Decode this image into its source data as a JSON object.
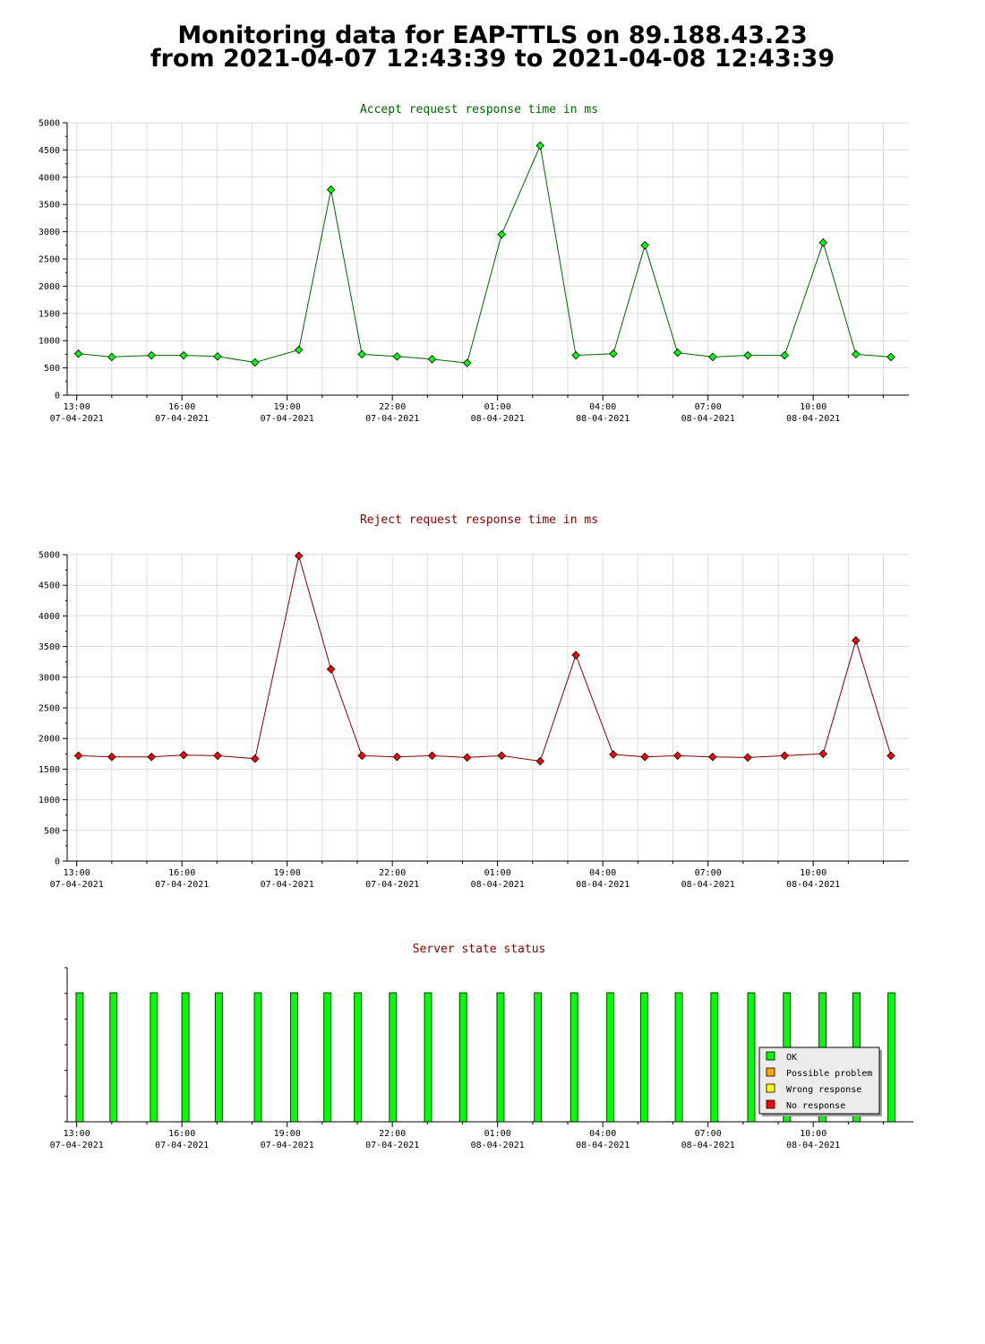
{
  "header": {
    "title_line1": "Monitoring data for EAP-TTLS on 89.188.43.23",
    "title_line2": "from 2021-04-07 12:43:39 to 2021-04-08 12:43:39"
  },
  "x_ticks": [
    {
      "time": "13:00",
      "date": "07-04-2021"
    },
    {
      "time": "16:00",
      "date": "07-04-2021"
    },
    {
      "time": "19:00",
      "date": "07-04-2021"
    },
    {
      "time": "22:00",
      "date": "07-04-2021"
    },
    {
      "time": "01:00",
      "date": "08-04-2021"
    },
    {
      "time": "04:00",
      "date": "08-04-2021"
    },
    {
      "time": "07:00",
      "date": "08-04-2021"
    },
    {
      "time": "10:00",
      "date": "08-04-2021"
    }
  ],
  "chart_data": [
    {
      "type": "line",
      "title": "Accept request response time in ms",
      "ylim": [
        0,
        5000
      ],
      "yticks": [
        0,
        500,
        1000,
        1500,
        2000,
        2500,
        3000,
        3500,
        4000,
        4500,
        5000
      ],
      "grid": true,
      "colors": {
        "title": "#006400",
        "line": "#006400",
        "marker": "#00ff00"
      },
      "series": [
        {
          "x": [
            "2021-04-07 13:03",
            "2021-04-07 14:00",
            "2021-04-07 15:08",
            "2021-04-07 16:03",
            "2021-04-07 17:01",
            "2021-04-07 18:05",
            "2021-04-07 19:20",
            "2021-04-07 20:15",
            "2021-04-07 21:08",
            "2021-04-07 22:08",
            "2021-04-07 23:08",
            "2021-04-08 00:08",
            "2021-04-08 01:07",
            "2021-04-08 02:13",
            "2021-04-08 03:14",
            "2021-04-08 04:18",
            "2021-04-08 05:12",
            "2021-04-08 06:08",
            "2021-04-08 07:08",
            "2021-04-08 08:08",
            "2021-04-08 09:11",
            "2021-04-08 10:17",
            "2021-04-08 11:13",
            "2021-04-08 12:13"
          ],
          "values": [
            760,
            700,
            730,
            730,
            710,
            600,
            830,
            3770,
            750,
            710,
            660,
            590,
            2950,
            4580,
            730,
            760,
            2750,
            780,
            700,
            730,
            730,
            2800,
            750,
            700
          ]
        }
      ]
    },
    {
      "type": "line",
      "title": "Reject request response time in ms",
      "ylim": [
        0,
        5000
      ],
      "yticks": [
        0,
        500,
        1000,
        1500,
        2000,
        2500,
        3000,
        3500,
        4000,
        4500,
        5000
      ],
      "grid": true,
      "colors": {
        "title": "#800000",
        "line": "#800000",
        "marker": "#ff0000"
      },
      "series": [
        {
          "x": [
            "2021-04-07 13:03",
            "2021-04-07 14:00",
            "2021-04-07 15:08",
            "2021-04-07 16:03",
            "2021-04-07 17:01",
            "2021-04-07 18:05",
            "2021-04-07 19:20",
            "2021-04-07 20:15",
            "2021-04-07 21:08",
            "2021-04-07 22:08",
            "2021-04-07 23:08",
            "2021-04-08 00:08",
            "2021-04-08 01:07",
            "2021-04-08 02:13",
            "2021-04-08 03:14",
            "2021-04-08 04:18",
            "2021-04-08 05:12",
            "2021-04-08 06:08",
            "2021-04-08 07:08",
            "2021-04-08 08:08",
            "2021-04-08 09:11",
            "2021-04-08 10:17",
            "2021-04-08 11:13",
            "2021-04-08 12:13"
          ],
          "values": [
            1720,
            1700,
            1700,
            1730,
            1720,
            1670,
            4980,
            3130,
            1720,
            1700,
            1720,
            1690,
            1720,
            1630,
            3360,
            1740,
            1700,
            1720,
            1700,
            1690,
            1720,
            1750,
            3600,
            1720
          ]
        }
      ]
    },
    {
      "type": "bar",
      "title": "Server state status",
      "colors": {
        "title": "#800000"
      },
      "x": [
        "2021-04-07 13:05",
        "2021-04-07 14:03",
        "2021-04-07 15:12",
        "2021-04-07 16:06",
        "2021-04-07 17:03",
        "2021-04-07 18:10",
        "2021-04-07 19:12",
        "2021-04-07 20:09",
        "2021-04-07 21:01",
        "2021-04-07 22:01",
        "2021-04-07 23:01",
        "2021-04-08 00:01",
        "2021-04-08 01:05",
        "2021-04-08 02:09",
        "2021-04-08 03:11",
        "2021-04-08 04:13",
        "2021-04-08 05:11",
        "2021-04-08 06:10",
        "2021-04-08 07:11",
        "2021-04-08 08:14",
        "2021-04-08 09:15",
        "2021-04-08 10:16",
        "2021-04-08 11:14",
        "2021-04-08 12:14"
      ],
      "series": [
        {
          "name": "OK",
          "values": [
            1,
            1,
            1,
            1,
            1,
            1,
            1,
            1,
            1,
            1,
            1,
            1,
            1,
            1,
            1,
            1,
            1,
            1,
            1,
            1,
            1,
            1,
            1,
            1
          ]
        }
      ],
      "legend": {
        "placement": "bottom-right",
        "items": [
          {
            "label": "OK",
            "color": "#00ff00"
          },
          {
            "label": "Possible problem",
            "color": "#ffa500"
          },
          {
            "label": "Wrong response",
            "color": "#ffff00"
          },
          {
            "label": "No response",
            "color": "#ff0000"
          }
        ]
      }
    }
  ]
}
